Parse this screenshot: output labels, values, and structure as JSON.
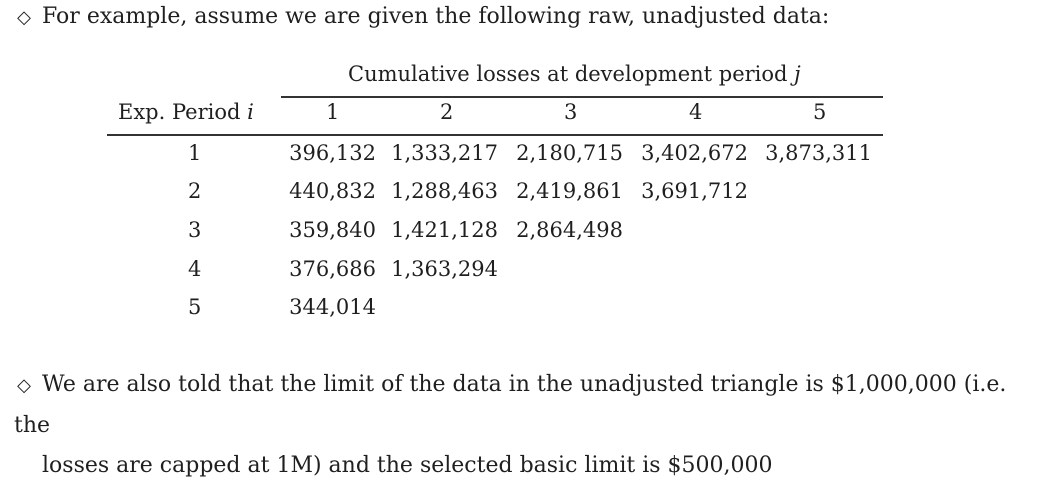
{
  "bullets": [
    {
      "icon": "diamond-icon",
      "text": "For example, assume we are given the following raw, unadjusted data:"
    },
    {
      "icon": "diamond-icon",
      "line1": "We are also told that the limit of the data in the unadjusted triangle is $1,000,000 (i.e. the",
      "line2": "losses are capped at 1M) and the selected basic limit is $500,000"
    }
  ],
  "table": {
    "super_header": "Cumulative losses at development period",
    "super_header_var": "j",
    "row_header_label": "Exp. Period",
    "row_header_var": "i",
    "columns": [
      "1",
      "2",
      "3",
      "4",
      "5"
    ],
    "rows": [
      {
        "period": "1",
        "values": [
          "396,132",
          "1,333,217",
          "2,180,715",
          "3,402,672",
          "3,873,311"
        ]
      },
      {
        "period": "2",
        "values": [
          "440,832",
          "1,288,463",
          "2,419,861",
          "3,691,712"
        ]
      },
      {
        "period": "3",
        "values": [
          "359,840",
          "1,421,128",
          "2,864,498"
        ]
      },
      {
        "period": "4",
        "values": [
          "376,686",
          "1,363,294"
        ]
      },
      {
        "period": "5",
        "values": [
          "344,014"
        ]
      }
    ]
  }
}
